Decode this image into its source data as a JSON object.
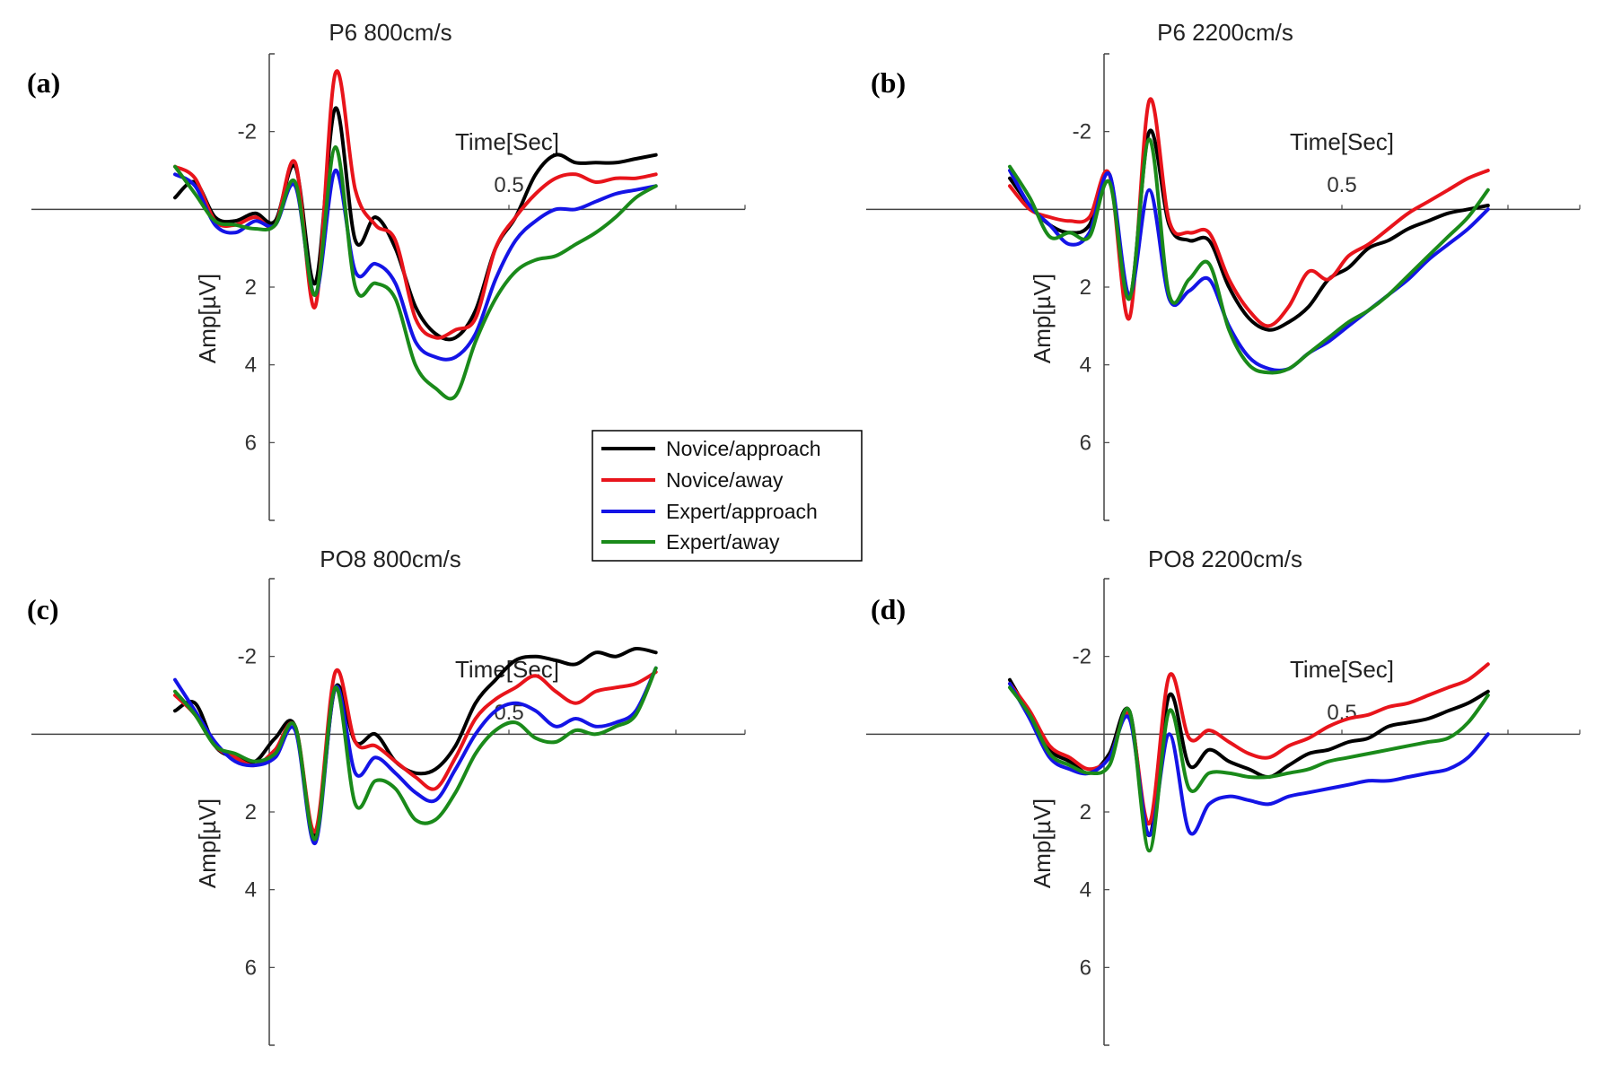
{
  "figure": {
    "legend": [
      {
        "label": "Novice/approach",
        "color": "#000000"
      },
      {
        "label": "Novice/away",
        "color": "#e8141b"
      },
      {
        "label": "Expert/approach",
        "color": "#1414e6"
      },
      {
        "label": "Expert/away",
        "color": "#1a8a1a"
      }
    ]
  },
  "chart_data": [
    {
      "type": "line",
      "panel_letter": "(a)",
      "title": "P6 800cm/s",
      "xlabel": "Time[Sec]",
      "ylabel": "Amp[µV]",
      "x_tick_labels": [
        "0.5"
      ],
      "y_tick_labels": [
        "-2",
        "2",
        "4",
        "6"
      ],
      "y_ticks": [
        -2,
        2,
        4,
        6
      ],
      "ylim": [
        -4,
        8
      ],
      "xlim": [
        -0.2,
        0.85
      ],
      "y_reversed": true,
      "x": [
        0.0,
        0.03,
        0.06,
        0.09,
        0.12,
        0.15,
        0.18,
        0.21,
        0.24,
        0.27,
        0.3,
        0.33,
        0.36,
        0.39,
        0.42,
        0.45,
        0.48,
        0.51,
        0.54,
        0.57,
        0.6,
        0.63,
        0.66,
        0.69,
        0.72
      ],
      "series": [
        {
          "name": "Novice/approach",
          "values": [
            -0.3,
            -0.7,
            0.2,
            0.3,
            0.1,
            0.3,
            -1.1,
            1.9,
            -2.6,
            0.8,
            0.2,
            1.0,
            2.5,
            3.2,
            3.3,
            2.6,
            1.0,
            0.2,
            -0.9,
            -1.4,
            -1.2,
            -1.2,
            -1.2,
            -1.3,
            -1.4
          ]
        },
        {
          "name": "Novice/away",
          "values": [
            -1.1,
            -0.8,
            0.3,
            0.4,
            0.2,
            0.4,
            -1.2,
            2.5,
            -3.5,
            -0.5,
            0.4,
            0.8,
            2.8,
            3.3,
            3.1,
            2.8,
            1.0,
            0.2,
            -0.4,
            -0.8,
            -0.9,
            -0.7,
            -0.8,
            -0.8,
            -0.9
          ]
        },
        {
          "name": "Expert/approach",
          "values": [
            -0.9,
            -0.6,
            0.4,
            0.6,
            0.3,
            0.4,
            -0.6,
            2.2,
            -1.0,
            1.6,
            1.4,
            1.9,
            3.4,
            3.8,
            3.8,
            3.2,
            1.8,
            0.8,
            0.3,
            0.0,
            0.0,
            -0.2,
            -0.4,
            -0.5,
            -0.6
          ]
        },
        {
          "name": "Expert/away",
          "values": [
            -1.1,
            -0.4,
            0.3,
            0.4,
            0.5,
            0.4,
            -0.7,
            2.2,
            -1.6,
            2.0,
            1.9,
            2.3,
            4.0,
            4.6,
            4.8,
            3.4,
            2.3,
            1.6,
            1.3,
            1.2,
            0.9,
            0.6,
            0.2,
            -0.3,
            -0.6
          ]
        }
      ]
    },
    {
      "type": "line",
      "panel_letter": "(b)",
      "title": "P6 2200cm/s",
      "xlabel": "Time[Sec]",
      "ylabel": "Amp[µV]",
      "x_tick_labels": [
        "0.5"
      ],
      "y_tick_labels": [
        "-2",
        "2",
        "4",
        "6"
      ],
      "y_ticks": [
        -2,
        2,
        4,
        6
      ],
      "ylim": [
        -4,
        8
      ],
      "xlim": [
        -0.2,
        0.85
      ],
      "y_reversed": true,
      "x": [
        0.0,
        0.03,
        0.06,
        0.09,
        0.12,
        0.15,
        0.18,
        0.21,
        0.24,
        0.27,
        0.3,
        0.33,
        0.36,
        0.39,
        0.42,
        0.45,
        0.48,
        0.51,
        0.54,
        0.57,
        0.6,
        0.63,
        0.66,
        0.69,
        0.72
      ],
      "series": [
        {
          "name": "Novice/approach",
          "values": [
            -0.8,
            -0.1,
            0.4,
            0.6,
            0.4,
            -0.9,
            2.3,
            -2.0,
            0.4,
            0.8,
            0.8,
            2.0,
            2.8,
            3.1,
            2.9,
            2.5,
            1.8,
            1.5,
            1.0,
            0.8,
            0.5,
            0.3,
            0.1,
            0.0,
            -0.1
          ]
        },
        {
          "name": "Novice/away",
          "values": [
            -0.6,
            0.0,
            0.2,
            0.3,
            0.2,
            -0.9,
            2.8,
            -2.8,
            0.3,
            0.6,
            0.6,
            1.8,
            2.6,
            3.0,
            2.5,
            1.6,
            1.8,
            1.2,
            0.9,
            0.5,
            0.1,
            -0.2,
            -0.5,
            -0.8,
            -1.0
          ]
        },
        {
          "name": "Expert/approach",
          "values": [
            -1.0,
            -0.1,
            0.4,
            0.9,
            0.6,
            -0.9,
            2.2,
            -0.5,
            2.3,
            2.1,
            1.8,
            3.0,
            3.8,
            4.1,
            4.1,
            3.7,
            3.4,
            3.0,
            2.6,
            2.2,
            1.8,
            1.3,
            0.9,
            0.5,
            0.0
          ]
        },
        {
          "name": "Expert/away",
          "values": [
            -1.1,
            -0.3,
            0.7,
            0.6,
            0.7,
            -0.7,
            2.3,
            -1.8,
            2.2,
            1.8,
            1.4,
            3.1,
            4.0,
            4.2,
            4.1,
            3.7,
            3.3,
            2.9,
            2.6,
            2.2,
            1.7,
            1.2,
            0.7,
            0.2,
            -0.5
          ]
        }
      ]
    },
    {
      "type": "line",
      "panel_letter": "(c)",
      "title": "PO8 800cm/s",
      "xlabel": "Time[Sec]",
      "ylabel": "Amp[µV]",
      "x_tick_labels": [
        "0.5"
      ],
      "y_tick_labels": [
        "-2",
        "2",
        "4",
        "6"
      ],
      "y_ticks": [
        -2,
        2,
        4,
        6
      ],
      "ylim": [
        -4,
        8
      ],
      "xlim": [
        -0.2,
        0.85
      ],
      "y_reversed": true,
      "x": [
        0.0,
        0.03,
        0.06,
        0.09,
        0.12,
        0.15,
        0.18,
        0.21,
        0.24,
        0.27,
        0.3,
        0.33,
        0.36,
        0.39,
        0.42,
        0.45,
        0.48,
        0.51,
        0.54,
        0.57,
        0.6,
        0.63,
        0.66,
        0.69,
        0.72
      ],
      "series": [
        {
          "name": "Novice/approach",
          "values": [
            -0.6,
            -0.8,
            0.3,
            0.6,
            0.7,
            0.1,
            -0.2,
            2.6,
            -1.2,
            0.2,
            0.0,
            0.7,
            1.0,
            0.9,
            0.3,
            -0.8,
            -1.4,
            -1.9,
            -2.0,
            -1.9,
            -1.8,
            -2.1,
            -2.0,
            -2.2,
            -2.1
          ]
        },
        {
          "name": "Novice/away",
          "values": [
            -1.0,
            -0.5,
            0.3,
            0.6,
            0.8,
            0.4,
            -0.2,
            2.5,
            -1.6,
            0.2,
            0.3,
            0.7,
            1.1,
            1.4,
            0.6,
            -0.4,
            -0.9,
            -1.2,
            -1.5,
            -1.1,
            -0.8,
            -1.1,
            -1.2,
            -1.3,
            -1.6
          ]
        },
        {
          "name": "Expert/approach",
          "values": [
            -1.4,
            -0.6,
            0.2,
            0.7,
            0.8,
            0.6,
            -0.1,
            2.8,
            -1.2,
            1.0,
            0.6,
            1.0,
            1.5,
            1.7,
            0.9,
            0.0,
            -0.6,
            -0.8,
            -0.6,
            -0.2,
            -0.4,
            -0.2,
            -0.3,
            -0.6,
            -1.7
          ]
        },
        {
          "name": "Expert/away",
          "values": [
            -1.1,
            -0.5,
            0.3,
            0.5,
            0.7,
            0.5,
            -0.2,
            2.7,
            -1.2,
            1.8,
            1.2,
            1.4,
            2.2,
            2.2,
            1.5,
            0.5,
            -0.1,
            -0.3,
            0.1,
            0.2,
            -0.1,
            0.0,
            -0.2,
            -0.5,
            -1.7
          ]
        }
      ]
    },
    {
      "type": "line",
      "panel_letter": "(d)",
      "title": "PO8 2200cm/s",
      "xlabel": "Time[Sec]",
      "ylabel": "Amp[µV]",
      "x_tick_labels": [
        "0.5"
      ],
      "y_tick_labels": [
        "-2",
        "2",
        "4",
        "6"
      ],
      "y_ticks": [
        -2,
        2,
        4,
        6
      ],
      "ylim": [
        -4,
        8
      ],
      "xlim": [
        -0.2,
        0.85
      ],
      "y_reversed": true,
      "x": [
        0.0,
        0.03,
        0.06,
        0.09,
        0.12,
        0.15,
        0.18,
        0.21,
        0.24,
        0.27,
        0.3,
        0.33,
        0.36,
        0.39,
        0.42,
        0.45,
        0.48,
        0.51,
        0.54,
        0.57,
        0.6,
        0.63,
        0.66,
        0.69,
        0.72
      ],
      "series": [
        {
          "name": "Novice/approach",
          "values": [
            -1.4,
            -0.5,
            0.4,
            0.7,
            1.0,
            0.5,
            -0.6,
            2.6,
            -1.0,
            0.8,
            0.4,
            0.7,
            0.9,
            1.1,
            0.8,
            0.5,
            0.4,
            0.2,
            0.1,
            -0.2,
            -0.3,
            -0.4,
            -0.6,
            -0.8,
            -1.1
          ]
        },
        {
          "name": "Novice/away",
          "values": [
            -1.3,
            -0.6,
            0.3,
            0.6,
            0.9,
            0.6,
            -0.5,
            2.3,
            -1.5,
            0.1,
            -0.1,
            0.2,
            0.5,
            0.6,
            0.3,
            0.1,
            -0.2,
            -0.4,
            -0.5,
            -0.7,
            -0.8,
            -1.0,
            -1.2,
            -1.4,
            -1.8
          ]
        },
        {
          "name": "Expert/approach",
          "values": [
            -1.3,
            -0.4,
            0.6,
            0.9,
            1.0,
            0.6,
            -0.4,
            2.6,
            0.0,
            2.5,
            1.8,
            1.6,
            1.7,
            1.8,
            1.6,
            1.5,
            1.4,
            1.3,
            1.2,
            1.2,
            1.1,
            1.0,
            0.9,
            0.6,
            0.0
          ]
        },
        {
          "name": "Expert/away",
          "values": [
            -1.2,
            -0.5,
            0.5,
            0.8,
            1.0,
            0.8,
            -0.6,
            3.0,
            -0.6,
            1.4,
            1.0,
            1.0,
            1.1,
            1.1,
            1.0,
            0.9,
            0.7,
            0.6,
            0.5,
            0.4,
            0.3,
            0.2,
            0.1,
            -0.3,
            -1.0
          ]
        }
      ]
    }
  ]
}
